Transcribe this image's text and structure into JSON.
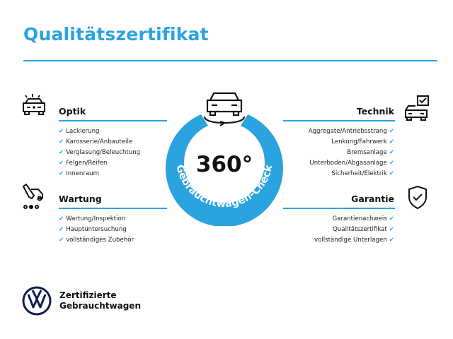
{
  "title": "Qualitätszertifikat",
  "check_icon": "✔",
  "accent": "#2aa3e0",
  "badge": {
    "number": "360°",
    "arc_text": "Gebrauchtwagen-Check"
  },
  "sections": {
    "optik": {
      "title": "Optik",
      "items": [
        "Lackierung",
        "Karosserie/Anbauteile",
        "Verglasung/Beleuchtung",
        "Felgen/Reifen",
        "Innenraum"
      ]
    },
    "wartung": {
      "title": "Wartung",
      "items": [
        "Wartung/Inspektion",
        "Hauptuntersuchung",
        "vollständiges Zubehör"
      ]
    },
    "technik": {
      "title": "Technik",
      "items": [
        "Aggregate/Antriebsstrang",
        "Lenkung/Fahrwerk",
        "Bremsanlage",
        "Unterboden/Abgasanlage",
        "Sicherheit/Elektrik"
      ]
    },
    "garantie": {
      "title": "Garantie",
      "items": [
        "Garantienachweis",
        "Qualitätszertifikat",
        "vollständige Unterlagen"
      ]
    }
  },
  "brand": {
    "line1": "Zertifizierte",
    "line2": "Gebrauchtwagen"
  }
}
